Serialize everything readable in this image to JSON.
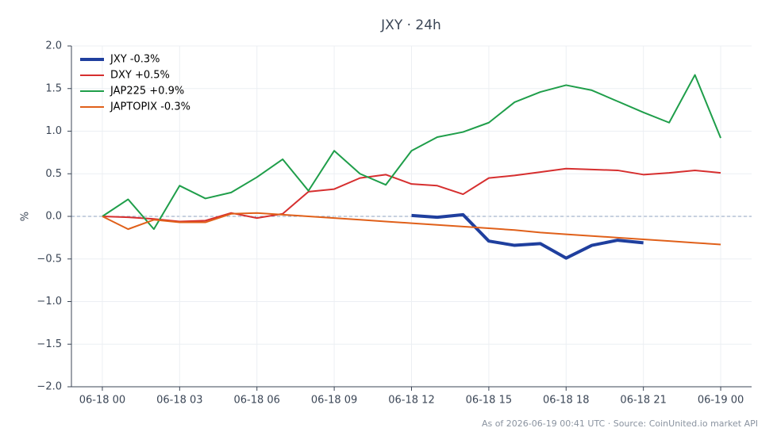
{
  "chart_data": {
    "type": "line",
    "title": "JXY · 24h",
    "y_label": "%",
    "footnote": "As of 2026-06-19 00:41 UTC · Source: CoinUnited.io market API",
    "x": [
      0,
      1,
      2,
      3,
      4,
      5,
      6,
      7,
      8,
      9,
      10,
      11,
      12,
      13,
      14,
      15,
      16,
      17,
      18,
      19,
      20,
      21,
      22,
      23,
      24
    ],
    "xlim": [
      -1.2,
      25.2
    ],
    "xticks": [
      {
        "value": 0,
        "label": "06-18 00"
      },
      {
        "value": 3,
        "label": "06-18 03"
      },
      {
        "value": 6,
        "label": "06-18 06"
      },
      {
        "value": 9,
        "label": "06-18 09"
      },
      {
        "value": 12,
        "label": "06-18 12"
      },
      {
        "value": 15,
        "label": "06-18 15"
      },
      {
        "value": 18,
        "label": "06-18 18"
      },
      {
        "value": 21,
        "label": "06-18 21"
      },
      {
        "value": 24,
        "label": "06-19 00"
      }
    ],
    "ylim": [
      -2.0,
      2.0
    ],
    "yticks": [
      {
        "value": -2,
        "label": "−2.0"
      },
      {
        "value": -1.5,
        "label": "−1.5"
      },
      {
        "value": -1,
        "label": "−1.0"
      },
      {
        "value": -0.5,
        "label": "−0.5"
      },
      {
        "value": 0,
        "label": "0.0"
      },
      {
        "value": 0.5,
        "label": "0.5"
      },
      {
        "value": 1,
        "label": "1.0"
      },
      {
        "value": 1.5,
        "label": "1.5"
      },
      {
        "value": 2,
        "label": "2.0"
      }
    ],
    "grid": true,
    "zero_line": true,
    "legend": "upper-left",
    "series": [
      {
        "name": "JXY -0.3%",
        "color": "#1f3f9e",
        "width": 4,
        "values": [
          null,
          null,
          null,
          null,
          null,
          null,
          null,
          null,
          null,
          null,
          null,
          null,
          0.01,
          -0.01,
          0.02,
          -0.29,
          -0.34,
          -0.32,
          -0.49,
          -0.34,
          -0.28,
          -0.31,
          null,
          null,
          null
        ]
      },
      {
        "name": "DXY +0.5%",
        "color": "#d62f2f",
        "width": 2,
        "values": [
          0,
          -0.01,
          -0.03,
          -0.06,
          -0.05,
          0.04,
          -0.02,
          0.03,
          0.29,
          0.32,
          0.45,
          0.49,
          0.38,
          0.36,
          0.26,
          0.45,
          0.48,
          0.52,
          0.56,
          0.55,
          0.54,
          0.49,
          0.51,
          0.54,
          0.51
        ]
      },
      {
        "name": "JAP225 +0.9%",
        "color": "#1f9e4a",
        "width": 2,
        "values": [
          0,
          0.2,
          -0.15,
          0.36,
          0.21,
          0.28,
          0.46,
          0.67,
          0.3,
          0.77,
          0.5,
          0.37,
          0.77,
          0.93,
          0.99,
          1.1,
          1.34,
          1.46,
          1.54,
          1.48,
          1.35,
          1.22,
          1.1,
          1.66,
          0.92
        ]
      },
      {
        "name": "JAPTOPIX -0.3%",
        "color": "#e0601a",
        "width": 2,
        "values": [
          0,
          -0.15,
          -0.04,
          -0.07,
          -0.07,
          0.03,
          0.04,
          0.02,
          0.0,
          -0.02,
          -0.04,
          -0.06,
          -0.08,
          -0.1,
          -0.12,
          -0.14,
          -0.16,
          -0.19,
          -0.21,
          -0.23,
          -0.25,
          -0.27,
          -0.29,
          -0.31,
          -0.33
        ]
      }
    ]
  }
}
